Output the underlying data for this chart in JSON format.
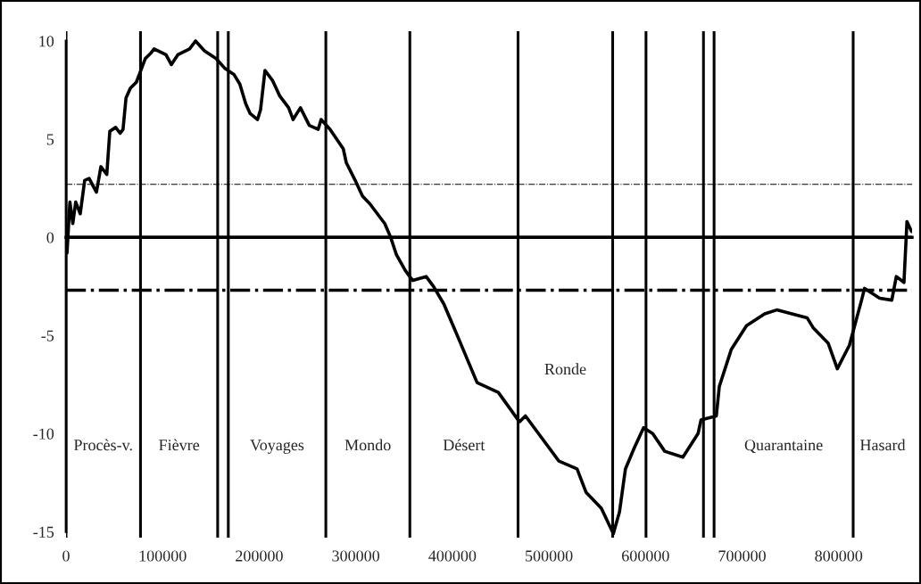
{
  "chart_data": {
    "type": "line",
    "x": [
      0,
      1000,
      4000,
      7000,
      10000,
      14700,
      19300,
      23900,
      31500,
      36100,
      42200,
      45300,
      51400,
      56000,
      59000,
      62100,
      66700,
      72800,
      77400,
      82000,
      88100,
      91200,
      103500,
      109000,
      115700,
      127900,
      134100,
      143300,
      155500,
      164600,
      173800,
      180000,
      186100,
      190700,
      198300,
      201400,
      206000,
      213700,
      221300,
      230500,
      235100,
      242700,
      251900,
      261100,
      264100,
      273300,
      287100,
      290200,
      299400,
      307000,
      314700,
      330000,
      336100,
      342200,
      351400,
      359000,
      372800,
      380400,
      391200,
      397300,
      406800,
      425600,
      447600,
      469500,
      475700,
      510300,
      529100,
      538500,
      554200,
      566700,
      573000,
      579200,
      588600,
      598000,
      607400,
      619900,
      638700,
      654400,
      657500,
      673300,
      676400,
      688900,
      704600,
      723400,
      735900,
      767300,
      773500,
      789200,
      798600,
      811100,
      823700,
      826800,
      842500,
      855000,
      859700,
      867600,
      870700,
      875400
    ],
    "series": [
      {
        "color": "#000000",
        "values": [
          0,
          -0.8,
          1.8,
          0.7,
          1.8,
          1.2,
          2.9,
          3.0,
          2.3,
          3.6,
          3.2,
          5.4,
          5.6,
          5.3,
          5.5,
          7.1,
          7.6,
          7.9,
          8.5,
          9.1,
          9.4,
          9.6,
          9.3,
          8.8,
          9.3,
          9.6,
          10.0,
          9.5,
          9.1,
          8.6,
          8.3,
          7.8,
          6.8,
          6.3,
          6.0,
          6.5,
          8.5,
          8.0,
          7.2,
          6.6,
          6.0,
          6.6,
          5.7,
          5.5,
          6.0,
          5.5,
          4.5,
          3.8,
          2.9,
          2.1,
          1.7,
          0.7,
          0.0,
          -0.9,
          -1.7,
          -2.2,
          -2.0,
          -2.5,
          -3.4,
          -4.1,
          -5.2,
          -7.4,
          -7.9,
          -9.4,
          -9.1,
          -11.4,
          -11.8,
          -13.0,
          -13.8,
          -15.1,
          -14.0,
          -11.8,
          -10.7,
          -9.7,
          -10.0,
          -10.9,
          -11.2,
          -10.0,
          -9.3,
          -9.1,
          -7.6,
          -5.7,
          -4.5,
          -3.9,
          -3.7,
          -4.1,
          -4.6,
          -5.4,
          -6.7,
          -5.5,
          -3.2,
          -2.6,
          -3.1,
          -3.2,
          -2.0,
          -2.3,
          0.8,
          0.3
        ]
      }
    ],
    "xlim": [
      0,
      876000
    ],
    "ylim": [
      -15.3,
      10.5
    ],
    "xticks": [
      0,
      100000,
      200000,
      300000,
      400000,
      500000,
      600000,
      700000,
      800000
    ],
    "yticks": [
      -15,
      -10,
      -5,
      0,
      5,
      10
    ],
    "grid": false,
    "legend": false,
    "marker": "none",
    "line_style": "solid",
    "ref_lines": [
      {
        "axis": "y",
        "value": 0,
        "color": "#000000",
        "line_style": "solid"
      },
      {
        "axis": "y",
        "value": 2.7,
        "color": "#000000",
        "line_style": "dashdot"
      },
      {
        "axis": "y",
        "value": -2.7,
        "color": "#000000",
        "line_style": "dashdot"
      },
      {
        "axis": "x",
        "value": 0,
        "color": "#000000",
        "label": "Procès-v."
      },
      {
        "axis": "x",
        "value": 77100,
        "color": "#000000",
        "label": "Fièvre"
      },
      {
        "axis": "x",
        "value": 157000,
        "color": "#000000"
      },
      {
        "axis": "x",
        "value": 168000,
        "color": "#000000",
        "label": "Voyages"
      },
      {
        "axis": "x",
        "value": 269000,
        "color": "#000000",
        "label": "Mondo"
      },
      {
        "axis": "x",
        "value": 356000,
        "color": "#000000",
        "label": "Désert"
      },
      {
        "axis": "x",
        "value": 468000,
        "color": "#000000",
        "label": "Ronde"
      },
      {
        "axis": "x",
        "value": 566000,
        "color": "#000000"
      },
      {
        "axis": "x",
        "value": 600500,
        "color": "#000000"
      },
      {
        "axis": "x",
        "value": 660000,
        "color": "#000000"
      },
      {
        "axis": "x",
        "value": 671000,
        "color": "#000000",
        "label": "Quarantaine"
      },
      {
        "axis": "x",
        "value": 815000,
        "color": "#000000",
        "label": "Hasard"
      }
    ]
  }
}
